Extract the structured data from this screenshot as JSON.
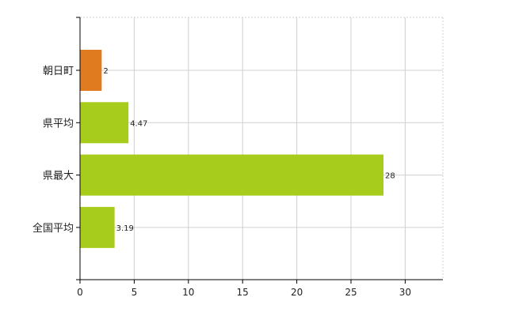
{
  "chart_data": {
    "type": "bar",
    "orientation": "horizontal",
    "categories": [
      "朝日町",
      "県平均",
      "県最大",
      "全国平均"
    ],
    "values": [
      2,
      4.47,
      28,
      3.19
    ],
    "data_labels": [
      "2",
      "4.47",
      "28",
      "3.19"
    ],
    "colors": [
      "#e07b20",
      "#a8cc1c",
      "#a8cc1c",
      "#a8cc1c"
    ],
    "xticks": [
      0,
      5,
      10,
      15,
      20,
      25,
      30
    ],
    "xlim": [
      0,
      33.5
    ],
    "grid": true,
    "legend": "none"
  }
}
